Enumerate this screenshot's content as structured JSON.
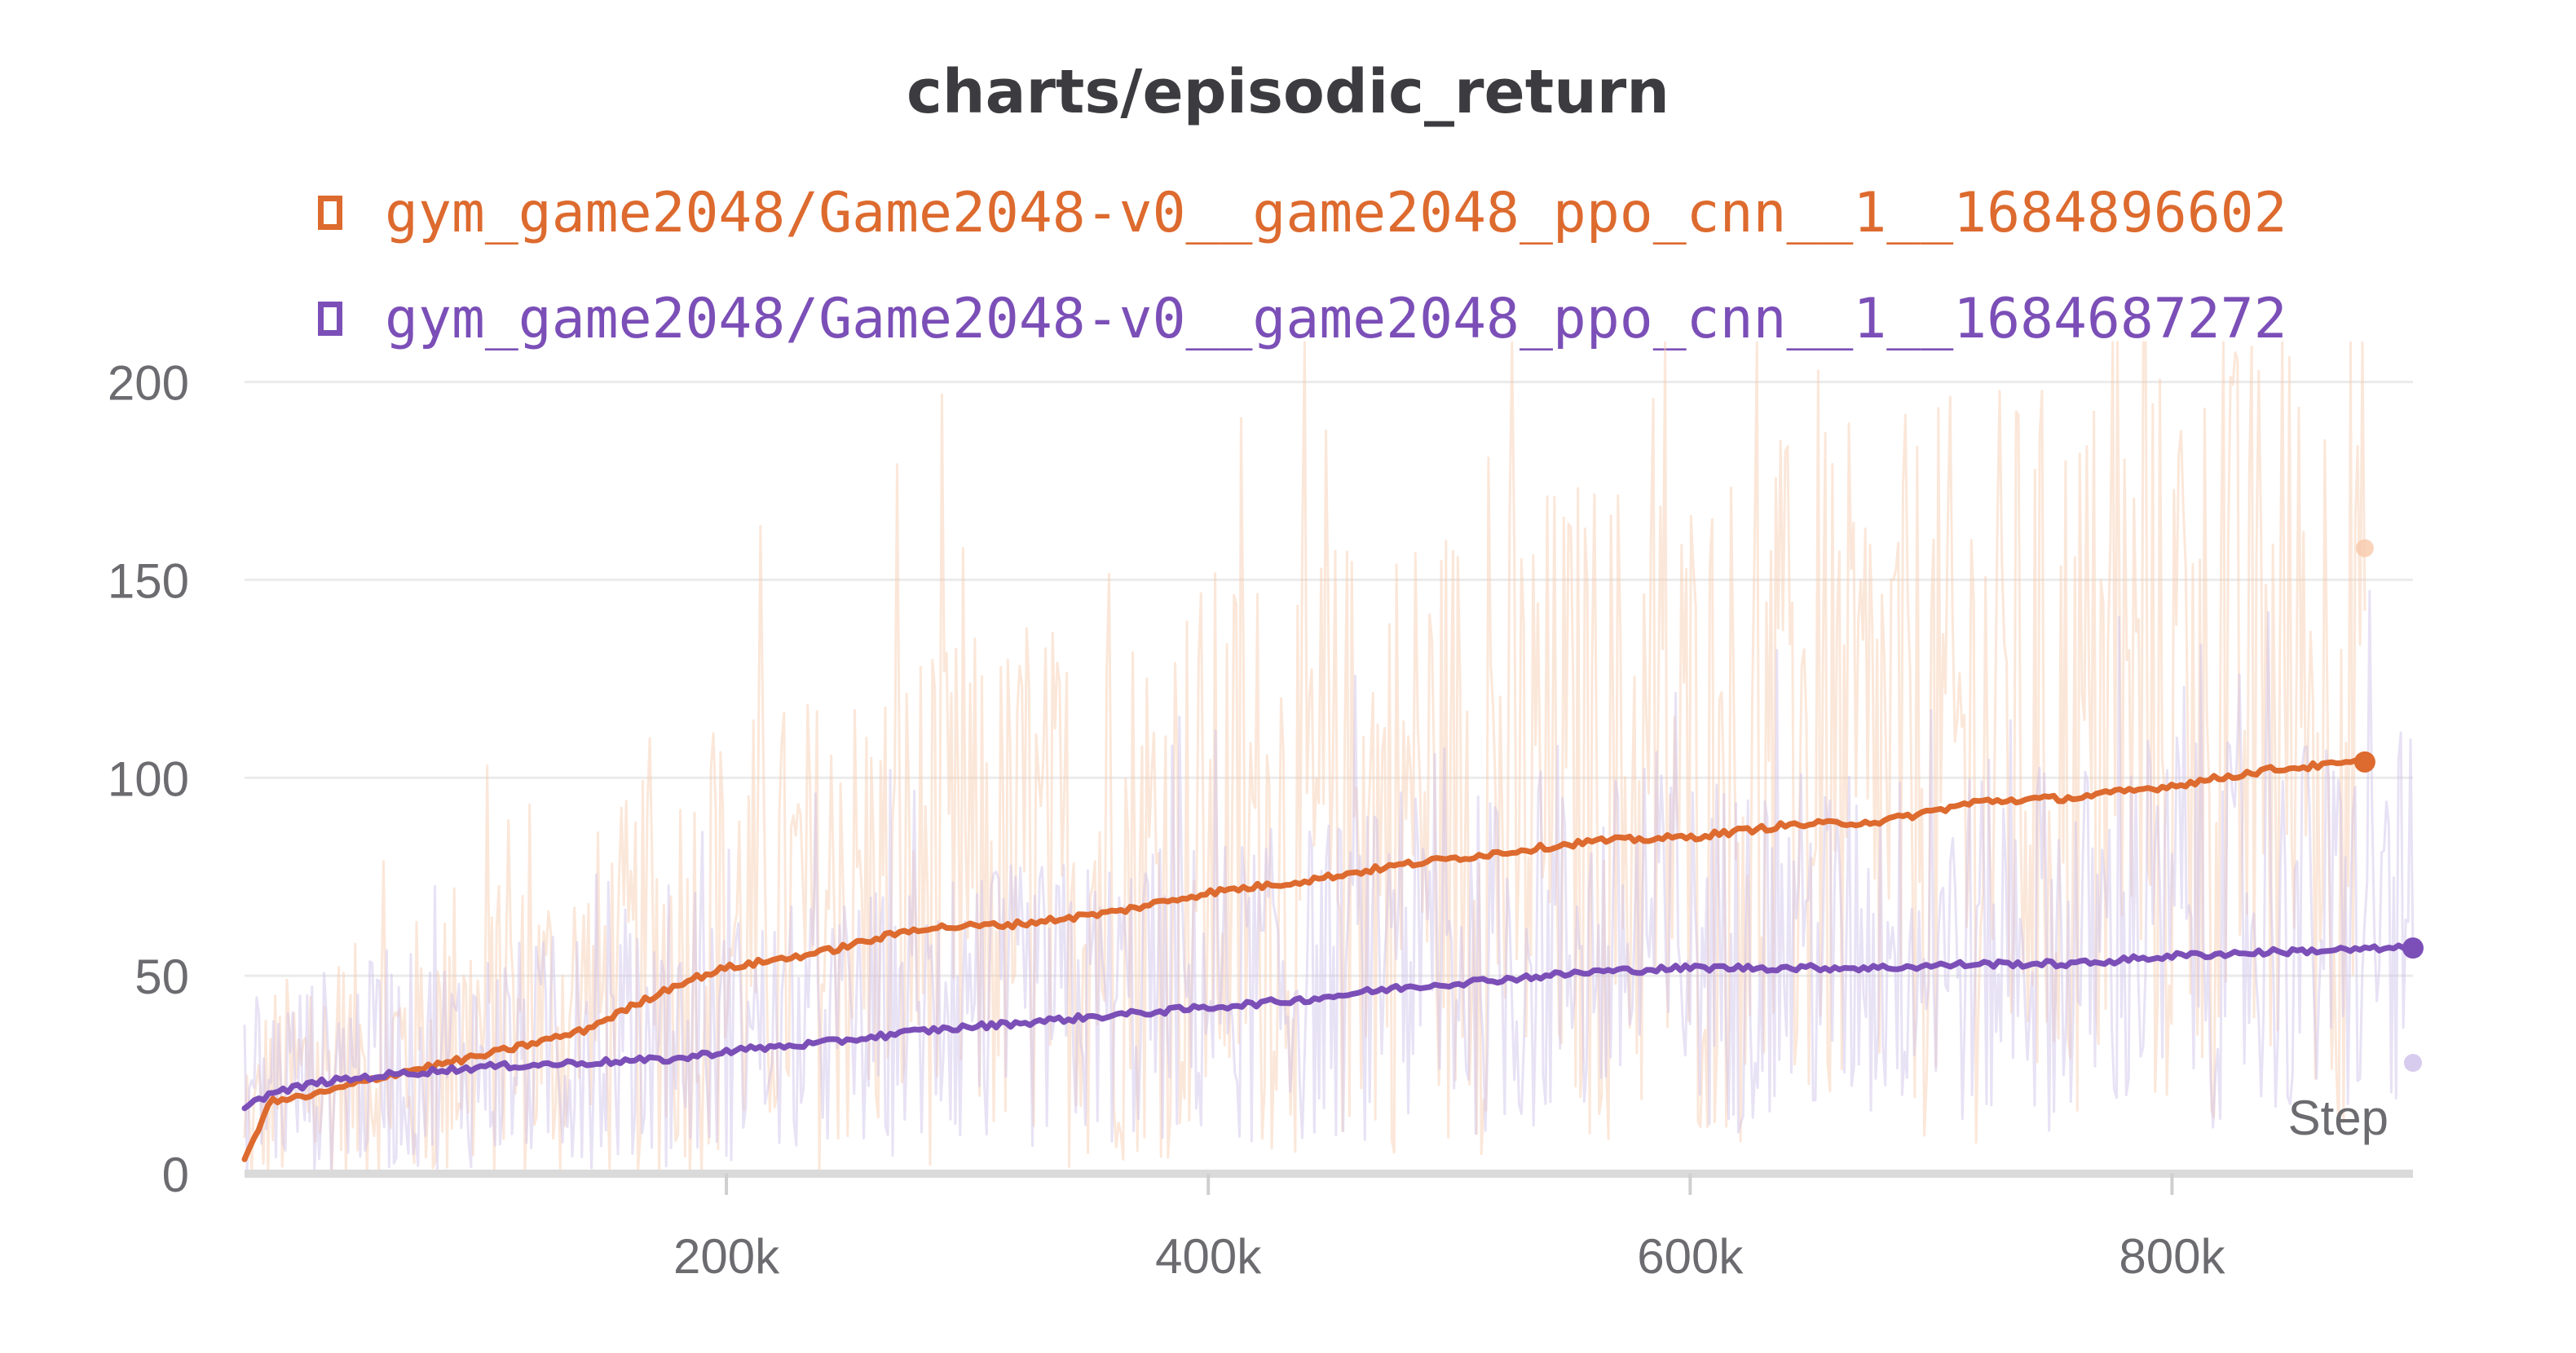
{
  "chart_data": {
    "type": "line",
    "title": "charts/episodic_return",
    "xlabel": "Step",
    "ylabel": "",
    "xlim": [
      0,
      900000
    ],
    "ylim": [
      0,
      210
    ],
    "x_ticks": [
      200000,
      400000,
      600000,
      800000
    ],
    "x_tick_labels": [
      "200k",
      "400k",
      "600k",
      "800k"
    ],
    "y_ticks": [
      0,
      50,
      100,
      150,
      200
    ],
    "y_tick_labels": [
      "0",
      "50",
      "100",
      "150",
      "200"
    ],
    "grid": true,
    "legend_position": "top",
    "series": [
      {
        "name": "gym_game2048/Game2048-v0__game2048_ppo_cnn__1__1684896602",
        "color": "#dd6a2e",
        "x": [
          0,
          10000,
          30000,
          60000,
          100000,
          140000,
          180000,
          200000,
          240000,
          280000,
          320000,
          360000,
          400000,
          440000,
          480000,
          520000,
          560000,
          600000,
          640000,
          680000,
          720000,
          760000,
          800000,
          840000,
          880000
        ],
        "smoothed": [
          3,
          18,
          20,
          25,
          30,
          36,
          48,
          52,
          56,
          62,
          63,
          66,
          71,
          74,
          78,
          81,
          84,
          85,
          88,
          89,
          94,
          95,
          98,
          102,
          104
        ],
        "last_raw_value": 158
      },
      {
        "name": "gym_game2048/Game2048-v0__game2048_ppo_cnn__1__1684687272",
        "color": "#7b4fb7",
        "x": [
          0,
          10000,
          30000,
          60000,
          100000,
          140000,
          180000,
          200000,
          240000,
          280000,
          320000,
          360000,
          400000,
          440000,
          480000,
          520000,
          560000,
          600000,
          640000,
          680000,
          720000,
          760000,
          800000,
          840000,
          900000
        ],
        "smoothed": [
          17,
          20,
          23,
          25,
          27,
          28,
          29,
          31,
          33,
          36,
          38,
          40,
          42,
          44,
          47,
          49,
          51,
          52,
          52,
          52,
          53,
          53,
          55,
          56,
          57
        ],
        "last_raw_value": 28
      }
    ]
  }
}
